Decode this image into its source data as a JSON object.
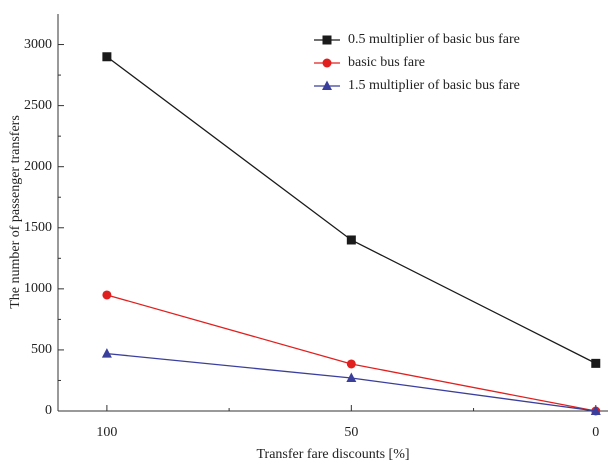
{
  "chart_data": {
    "type": "line",
    "x_label": "Transfer fare discounts [%]",
    "y_label": "The number of passenger transfers",
    "x": [
      100,
      50,
      0
    ],
    "xlim": [
      110,
      -2.5
    ],
    "xticks": [
      100,
      50,
      0
    ],
    "ylim": [
      0,
      3250
    ],
    "yticks": [
      0,
      500,
      1000,
      1500,
      2000,
      2500,
      3000
    ],
    "legend": "upper right",
    "series": [
      {
        "name": "0.5 multiplier of basic bus fare",
        "color": "#1a1a1a",
        "marker": "square",
        "values": [
          2900,
          1400,
          390
        ]
      },
      {
        "name": "basic bus  fare",
        "color": "#e0201f",
        "marker": "circle",
        "values": [
          950,
          385,
          0
        ]
      },
      {
        "name": "1.5 multiplier of basic bus fare",
        "color": "#3b3f9c",
        "marker": "triangle",
        "values": [
          470,
          270,
          0
        ]
      }
    ]
  }
}
